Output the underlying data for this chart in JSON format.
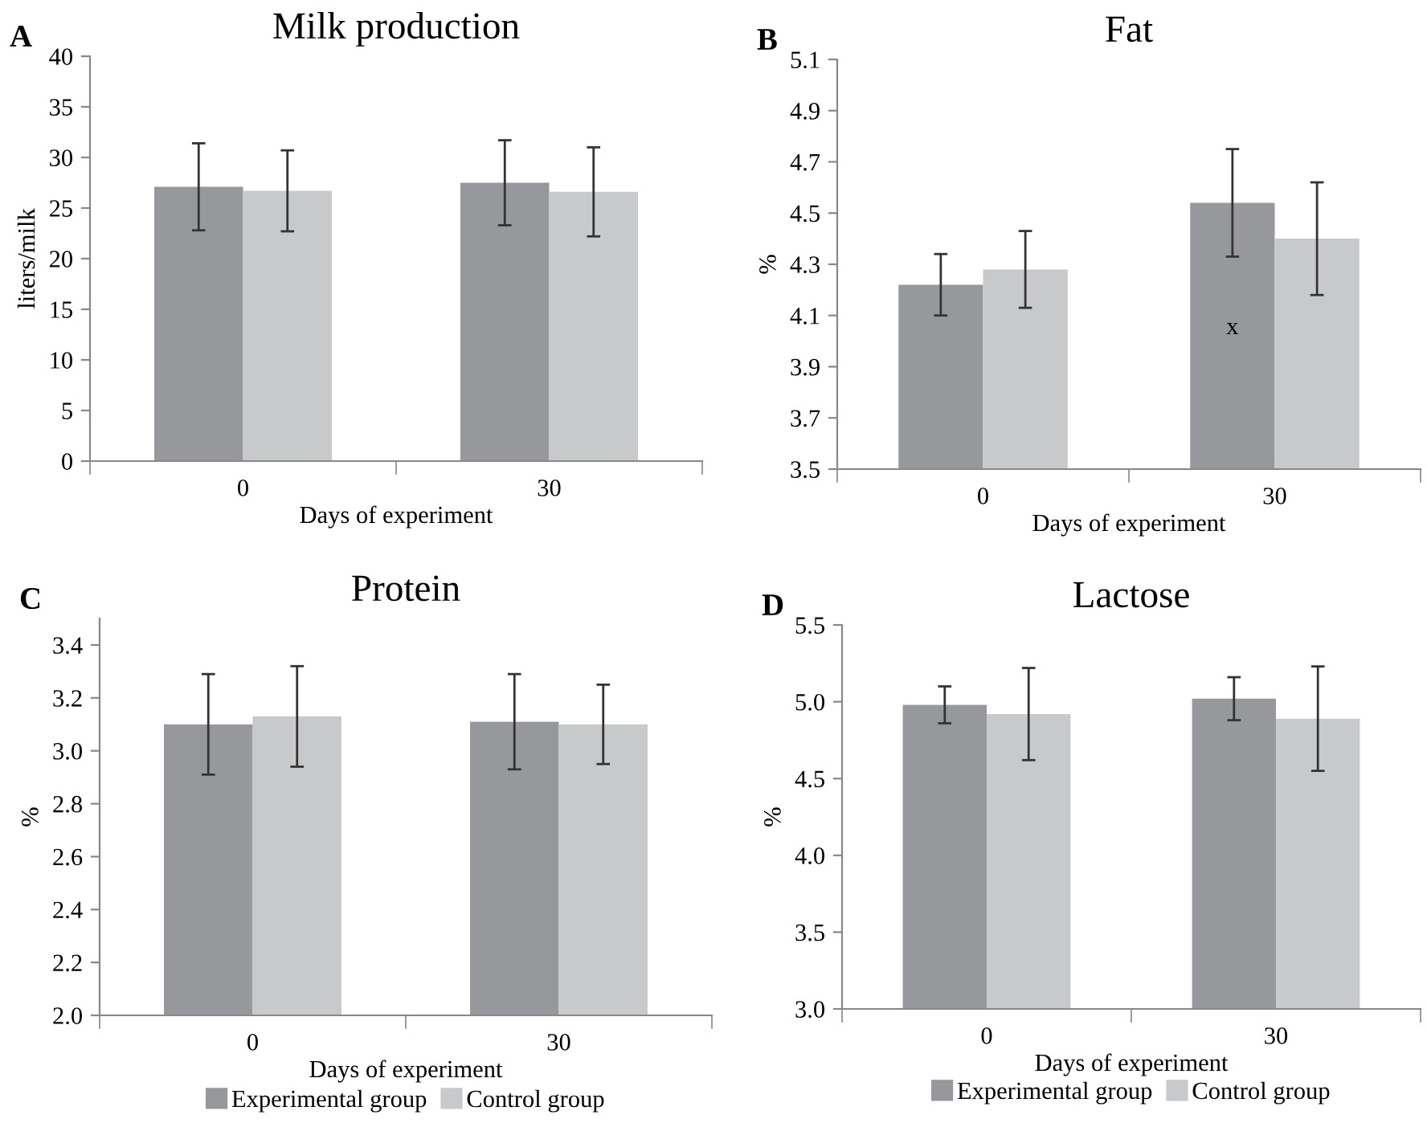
{
  "chart_data": [
    {
      "type": "bar",
      "title": "Milk production",
      "annotations": [
        "A"
      ],
      "xlabel": "Days of experiment",
      "ylabel": "liters/milk",
      "categories": [
        "0",
        "30"
      ],
      "ylim": [
        0,
        40
      ],
      "yticks": [
        0,
        5,
        10,
        15,
        20,
        25,
        30,
        35,
        40
      ],
      "grid": false,
      "legend": false,
      "series": [
        {
          "color": "#97989c",
          "values": [
            27.1,
            27.5
          ],
          "errors": [
            4.3,
            4.2
          ]
        },
        {
          "color": "#c8c9cb",
          "values": [
            26.7,
            26.6
          ],
          "errors": [
            4.0,
            4.4
          ]
        }
      ]
    },
    {
      "type": "bar",
      "title": "Fat",
      "annotations": [
        "B",
        {
          "text": "x",
          "x": "30",
          "y": 4.05
        }
      ],
      "xlabel": "Days of experiment",
      "ylabel": "%",
      "categories": [
        "0",
        "30"
      ],
      "ylim": [
        3.5,
        5.1
      ],
      "yticks": [
        3.5,
        3.7,
        3.9,
        4.1,
        4.3,
        4.5,
        4.7,
        4.9,
        5.1
      ],
      "grid": false,
      "legend": false,
      "series": [
        {
          "color": "#97989c",
          "values": [
            4.22,
            4.54
          ],
          "errors": [
            0.12,
            0.21
          ]
        },
        {
          "color": "#c8c9cb",
          "values": [
            4.28,
            4.4
          ],
          "errors": [
            0.15,
            0.22
          ]
        }
      ]
    },
    {
      "type": "bar",
      "title": "Protein",
      "annotations": [
        "C"
      ],
      "xlabel": "Days of experiment",
      "ylabel": "%",
      "categories": [
        "0",
        "30"
      ],
      "ylim": [
        2.0,
        3.5
      ],
      "yticks": [
        {
          "value": 2.0,
          "label": "2.0"
        },
        2.2,
        2.4,
        2.6,
        2.8,
        {
          "value": 3.0,
          "label": "3.0"
        },
        3.2,
        3.4
      ],
      "grid": false,
      "legend": "bottom",
      "series": [
        {
          "name": "Experimental group",
          "color": "#97989c",
          "values": [
            3.1,
            3.11
          ],
          "errors": [
            0.19,
            0.18
          ]
        },
        {
          "name": "Control group",
          "color": "#c8c9cb",
          "values": [
            3.13,
            3.1
          ],
          "errors": [
            0.19,
            0.15
          ]
        }
      ]
    },
    {
      "type": "bar",
      "title": "Lactose",
      "annotations": [
        "D"
      ],
      "xlabel": "Days of experiment",
      "ylabel": "%",
      "categories": [
        "0",
        "30"
      ],
      "ylim": [
        3.0,
        5.5
      ],
      "yticks": [
        {
          "value": 3.0,
          "label": "3.0"
        },
        3.5,
        {
          "value": 4.0,
          "label": "4.0"
        },
        4.5,
        {
          "value": 5.0,
          "label": "5.0"
        },
        5.5
      ],
      "grid": false,
      "legend": "bottom",
      "series": [
        {
          "name": "Experimental group",
          "color": "#97989c",
          "values": [
            4.98,
            5.02
          ],
          "errors": [
            0.12,
            0.14
          ]
        },
        {
          "name": "Control group",
          "color": "#c8c9cb",
          "values": [
            4.92,
            4.89
          ],
          "errors": [
            0.3,
            0.34
          ]
        }
      ]
    }
  ]
}
